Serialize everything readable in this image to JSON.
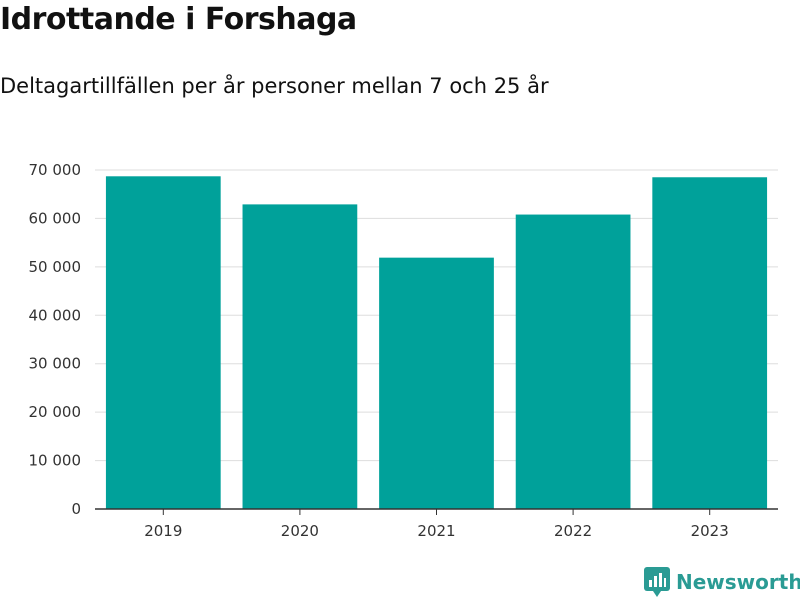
{
  "title": "Idrottande i Forshaga",
  "subtitle": "Deltagartillfällen per år personer mellan 7 och 25 år",
  "brand": {
    "name": "Newsworthy",
    "icon": "newsworthy-logo-icon",
    "color": "#2a9b94"
  },
  "chart_data": {
    "type": "bar",
    "title": "Idrottande i Forshaga",
    "subtitle": "Deltagartillfällen per år personer mellan 7 och 25 år",
    "categories": [
      "2019",
      "2020",
      "2021",
      "2022",
      "2023"
    ],
    "values": [
      68700,
      62900,
      51900,
      60800,
      68500
    ],
    "ylim": [
      0,
      70000
    ],
    "yticks": [
      0,
      10000,
      20000,
      30000,
      40000,
      50000,
      60000,
      70000
    ],
    "ytick_labels": [
      "0",
      "10 000",
      "20 000",
      "30 000",
      "40 000",
      "50 000",
      "60 000",
      "70 000"
    ],
    "grid": true,
    "bar_color": "#00a19a",
    "grid_color": "#dddddd",
    "axis_color": "#333333"
  }
}
